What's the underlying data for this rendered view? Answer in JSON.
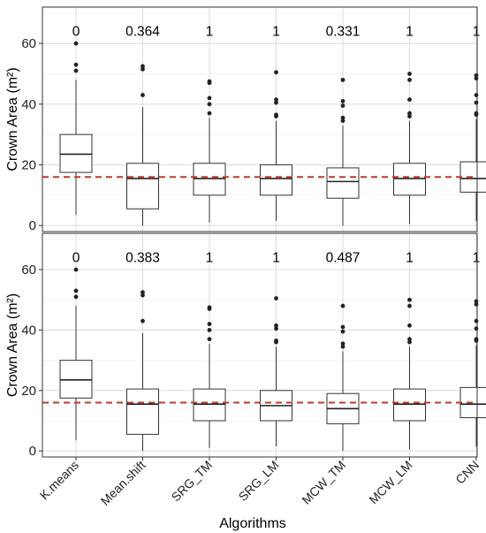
{
  "chart_data": [
    {
      "type": "box",
      "ylabel": "Crown Area (m²)",
      "xlabel": "",
      "ylim": [
        -2,
        72
      ],
      "yticks": [
        0,
        20,
        40,
        60
      ],
      "grid": true,
      "reference_line": {
        "value": 16,
        "style": "dashed",
        "color": "#c0392b"
      },
      "categories": [
        "K.means",
        "Mean.shift",
        "SRG_TM",
        "SRG_LM",
        "MCW_TM",
        "MCW_LM",
        "CNN"
      ],
      "annotations": [
        "0",
        "0.364",
        "1",
        "1",
        "0.331",
        "1",
        "1"
      ],
      "boxes": [
        {
          "whislo": 3.5,
          "q1": 17.5,
          "med": 23.5,
          "q3": 30,
          "whishi": 48,
          "outliers": [
            51,
            53,
            60
          ]
        },
        {
          "whislo": 0,
          "q1": 5.5,
          "med": 15.5,
          "q3": 20.5,
          "whishi": 39,
          "outliers": [
            43,
            51.5,
            52.5
          ]
        },
        {
          "whislo": 1,
          "q1": 10,
          "med": 15.5,
          "q3": 20.5,
          "whishi": 35.5,
          "outliers": [
            37,
            40,
            42,
            47,
            47.5
          ]
        },
        {
          "whislo": 1.5,
          "q1": 10,
          "med": 15.5,
          "q3": 20,
          "whishi": 34.5,
          "outliers": [
            36,
            36.5,
            40.5,
            41.5,
            50.5
          ]
        },
        {
          "whislo": 0,
          "q1": 9,
          "med": 14.5,
          "q3": 19,
          "whishi": 33,
          "outliers": [
            34.5,
            35.5,
            39.5,
            41,
            48
          ]
        },
        {
          "whislo": 0.5,
          "q1": 10,
          "med": 15.5,
          "q3": 20.5,
          "whishi": 34.5,
          "outliers": [
            36,
            37,
            41.5,
            48,
            50
          ]
        },
        {
          "whislo": 1.5,
          "q1": 11,
          "med": 15.5,
          "q3": 21,
          "whishi": 35,
          "outliers": [
            36.5,
            37,
            40.5,
            43,
            48.5,
            49.5
          ]
        }
      ]
    },
    {
      "type": "box",
      "ylabel": "Crown Area (m²)",
      "xlabel": "Algorithms",
      "ylim": [
        -2,
        72
      ],
      "yticks": [
        0,
        20,
        40,
        60
      ],
      "grid": true,
      "reference_line": {
        "value": 16,
        "style": "dashed",
        "color": "#c0392b"
      },
      "categories": [
        "K.means",
        "Mean.shift",
        "SRG_TM",
        "SRG_LM",
        "MCW_TM",
        "MCW_LM",
        "CNN"
      ],
      "annotations": [
        "0",
        "0.383",
        "1",
        "1",
        "0.487",
        "1",
        "1"
      ],
      "boxes": [
        {
          "whislo": 3.5,
          "q1": 17.5,
          "med": 23.5,
          "q3": 30,
          "whishi": 48,
          "outliers": [
            51,
            53,
            60
          ]
        },
        {
          "whislo": 0,
          "q1": 5.5,
          "med": 15.5,
          "q3": 20.5,
          "whishi": 39,
          "outliers": [
            43,
            51.5,
            52.5
          ]
        },
        {
          "whislo": 1,
          "q1": 10,
          "med": 15.5,
          "q3": 20.5,
          "whishi": 35.5,
          "outliers": [
            37,
            40,
            42,
            47,
            47.5
          ]
        },
        {
          "whislo": 1.5,
          "q1": 10,
          "med": 15,
          "q3": 20,
          "whishi": 34.5,
          "outliers": [
            36,
            36.5,
            40.5,
            41.5,
            50.5
          ]
        },
        {
          "whislo": 0,
          "q1": 9,
          "med": 14,
          "q3": 19,
          "whishi": 33,
          "outliers": [
            34.5,
            35.5,
            39.5,
            41,
            48
          ]
        },
        {
          "whislo": 0.5,
          "q1": 10,
          "med": 15.5,
          "q3": 20.5,
          "whishi": 34.5,
          "outliers": [
            36,
            37,
            41.5,
            48,
            50
          ]
        },
        {
          "whislo": 1.5,
          "q1": 11,
          "med": 15.5,
          "q3": 21,
          "whishi": 35,
          "outliers": [
            36.5,
            37,
            40.5,
            43,
            48.5,
            49.5
          ]
        }
      ]
    }
  ]
}
